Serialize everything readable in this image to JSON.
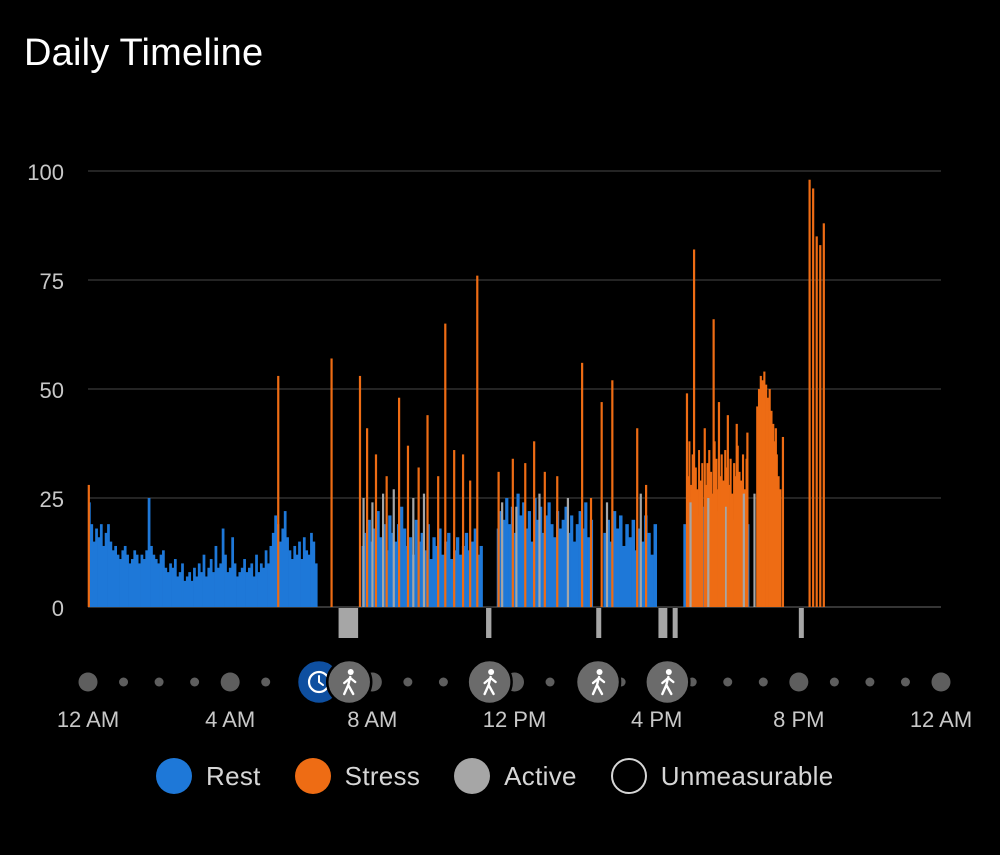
{
  "title": "Daily Timeline",
  "colors": {
    "rest": "#1e78d8",
    "stress": "#ee6c14",
    "active": "#a6a6a6",
    "grid": "#3a3a3a",
    "axis_text": "#c8c8c8",
    "activity_badge": "#6b6b6b",
    "watch_badge": "#0e4fa0"
  },
  "legend": [
    {
      "key": "rest",
      "label": "Rest",
      "icon": "filled-circle"
    },
    {
      "key": "stress",
      "label": "Stress",
      "icon": "filled-circle"
    },
    {
      "key": "active",
      "label": "Active",
      "icon": "filled-circle"
    },
    {
      "key": "unmeasurable",
      "label": "Unmeasurable",
      "icon": "outline-circle"
    }
  ],
  "chart_data": {
    "type": "bar",
    "title": "Daily Timeline",
    "x_unit": "hour of day",
    "xlim": [
      0,
      24
    ],
    "ylim": [
      0,
      100
    ],
    "y_ticks": [
      "0",
      "25",
      "50",
      "75",
      "100"
    ],
    "x_ticks": [
      "12 AM",
      "4 AM",
      "8 AM",
      "12 PM",
      "4 PM",
      "8 PM",
      "12 AM"
    ],
    "grid": true,
    "legend_position": "bottom",
    "series": [
      {
        "name": "Rest",
        "segments": [
          {
            "start": 0.0,
            "end": 6.45,
            "values": [
              24,
              19,
              15,
              18,
              16,
              19,
              14,
              17,
              19,
              15,
              13,
              14,
              12,
              11,
              13,
              14,
              12,
              10,
              11,
              13,
              12,
              10,
              12,
              11,
              13,
              25,
              14,
              12,
              11,
              10,
              12,
              13,
              9,
              8,
              10,
              9,
              11,
              7,
              8,
              10,
              6,
              7,
              8,
              6,
              9,
              7,
              10,
              8,
              12,
              7,
              9,
              11,
              8,
              14,
              9,
              10,
              18,
              12,
              8,
              9,
              16,
              10,
              7,
              8,
              9,
              11,
              8,
              9,
              10,
              7,
              12,
              8,
              10,
              9,
              13,
              10,
              14,
              17,
              21,
              19,
              15,
              18,
              22,
              16,
              13,
              11,
              14,
              12,
              15,
              11,
              16,
              13,
              12,
              17,
              15,
              10
            ]
          },
          {
            "start": 7.7,
            "end": 11.1,
            "values": [
              14,
              17,
              20,
              15,
              18,
              22,
              16,
              19,
              13,
              21,
              17,
              15,
              19,
              23,
              18,
              14,
              16,
              12,
              20,
              15,
              17,
              13,
              19,
              11,
              16,
              14,
              18,
              12,
              15,
              17,
              11,
              13,
              16,
              12,
              14,
              17,
              13,
              15,
              18,
              12,
              14
            ]
          },
          {
            "start": 11.5,
            "end": 14.2,
            "values": [
              18,
              22,
              20,
              25,
              19,
              23,
              17,
              26,
              21,
              24,
              18,
              22,
              15,
              25,
              20,
              23,
              17,
              21,
              24,
              19,
              16,
              22,
              18,
              20,
              23,
              17,
              21,
              15,
              19,
              22,
              18,
              24,
              16,
              20
            ]
          },
          {
            "start": 14.5,
            "end": 16.0,
            "values": [
              17,
              20,
              15,
              22,
              18,
              21,
              14,
              19,
              16,
              20,
              13,
              18,
              15,
              21,
              17,
              12,
              19
            ]
          },
          {
            "start": 16.75,
            "end": 18.6,
            "values": [
              19,
              16,
              22,
              18,
              21,
              17,
              23,
              15,
              20,
              18,
              22,
              16,
              19,
              21,
              17,
              20,
              18,
              22,
              16,
              19
            ]
          }
        ]
      },
      {
        "name": "Stress",
        "spikes": [
          {
            "x": 0.02,
            "value": 28
          },
          {
            "x": 5.35,
            "value": 53
          },
          {
            "x": 6.85,
            "value": 57
          },
          {
            "x": 7.65,
            "value": 53
          },
          {
            "x": 7.85,
            "value": 41
          },
          {
            "x": 8.1,
            "value": 35
          },
          {
            "x": 8.4,
            "value": 30
          },
          {
            "x": 8.75,
            "value": 48
          },
          {
            "x": 9.0,
            "value": 37
          },
          {
            "x": 9.3,
            "value": 32
          },
          {
            "x": 9.55,
            "value": 44
          },
          {
            "x": 9.85,
            "value": 30
          },
          {
            "x": 10.05,
            "value": 65
          },
          {
            "x": 10.3,
            "value": 36
          },
          {
            "x": 10.55,
            "value": 35
          },
          {
            "x": 10.75,
            "value": 29
          },
          {
            "x": 10.95,
            "value": 76
          },
          {
            "x": 11.55,
            "value": 31
          },
          {
            "x": 11.95,
            "value": 34
          },
          {
            "x": 12.3,
            "value": 33
          },
          {
            "x": 12.55,
            "value": 38
          },
          {
            "x": 12.85,
            "value": 31
          },
          {
            "x": 13.2,
            "value": 30
          },
          {
            "x": 13.9,
            "value": 56
          },
          {
            "x": 14.15,
            "value": 25
          },
          {
            "x": 14.45,
            "value": 47
          },
          {
            "x": 14.75,
            "value": 52
          },
          {
            "x": 15.45,
            "value": 41
          },
          {
            "x": 15.7,
            "value": 28
          },
          {
            "x": 16.85,
            "value": 49
          },
          {
            "x": 17.05,
            "value": 82
          },
          {
            "x": 17.35,
            "value": 41
          },
          {
            "x": 17.6,
            "value": 66
          },
          {
            "x": 17.75,
            "value": 47
          },
          {
            "x": 18.0,
            "value": 44
          },
          {
            "x": 18.25,
            "value": 42
          },
          {
            "x": 18.55,
            "value": 40
          },
          {
            "x": 19.35,
            "value": 41
          },
          {
            "x": 19.55,
            "value": 39
          },
          {
            "x": 20.3,
            "value": 98
          },
          {
            "x": 20.4,
            "value": 96
          },
          {
            "x": 20.5,
            "value": 85
          },
          {
            "x": 20.6,
            "value": 83
          },
          {
            "x": 20.7,
            "value": 88
          }
        ],
        "segments": [
          {
            "start": 16.85,
            "end": 17.3,
            "values": [
              30,
              38,
              28,
              35,
              26,
              32,
              27,
              36,
              29,
              33
            ]
          },
          {
            "start": 17.35,
            "end": 18.55,
            "values": [
              28,
              33,
              36,
              31,
              26,
              38,
              34,
              27,
              30,
              35,
              29,
              36,
              32,
              28,
              34,
              26,
              33,
              30,
              37,
              31,
              29,
              35,
              27,
              34
            ]
          },
          {
            "start": 18.8,
            "end": 19.5,
            "values": [
              46,
              50,
              53,
              52,
              54,
              51,
              48,
              50,
              45,
              42,
              38,
              35,
              30,
              27
            ]
          }
        ]
      },
      {
        "name": "Active",
        "spikes": [
          {
            "x": 7.75,
            "value": 25
          },
          {
            "x": 8.0,
            "value": 24
          },
          {
            "x": 8.3,
            "value": 26
          },
          {
            "x": 8.6,
            "value": 27
          },
          {
            "x": 9.15,
            "value": 25
          },
          {
            "x": 9.45,
            "value": 26
          },
          {
            "x": 11.65,
            "value": 24
          },
          {
            "x": 12.05,
            "value": 23
          },
          {
            "x": 12.7,
            "value": 26
          },
          {
            "x": 13.5,
            "value": 25
          },
          {
            "x": 14.6,
            "value": 24
          },
          {
            "x": 15.55,
            "value": 26
          },
          {
            "x": 16.95,
            "value": 24
          },
          {
            "x": 17.45,
            "value": 25
          },
          {
            "x": 17.95,
            "value": 23
          },
          {
            "x": 18.45,
            "value": 26
          },
          {
            "x": 18.75,
            "value": 26
          }
        ],
        "ticks_below_axis": [
          {
            "start": 7.05,
            "end": 7.6
          },
          {
            "start": 11.2,
            "end": 11.35
          },
          {
            "start": 14.3,
            "end": 14.42
          },
          {
            "start": 16.05,
            "end": 16.3
          },
          {
            "start": 16.45,
            "end": 16.58
          },
          {
            "start": 20.0,
            "end": 20.1
          }
        ]
      }
    ],
    "timeline_markers": [
      {
        "hour": 6.5,
        "kind": "watch-icon"
      },
      {
        "hour": 7.35,
        "kind": "walking-icon"
      },
      {
        "hour": 11.3,
        "kind": "walking-icon"
      },
      {
        "hour": 14.35,
        "kind": "walking-icon"
      },
      {
        "hour": 16.3,
        "kind": "walking-icon"
      }
    ]
  }
}
